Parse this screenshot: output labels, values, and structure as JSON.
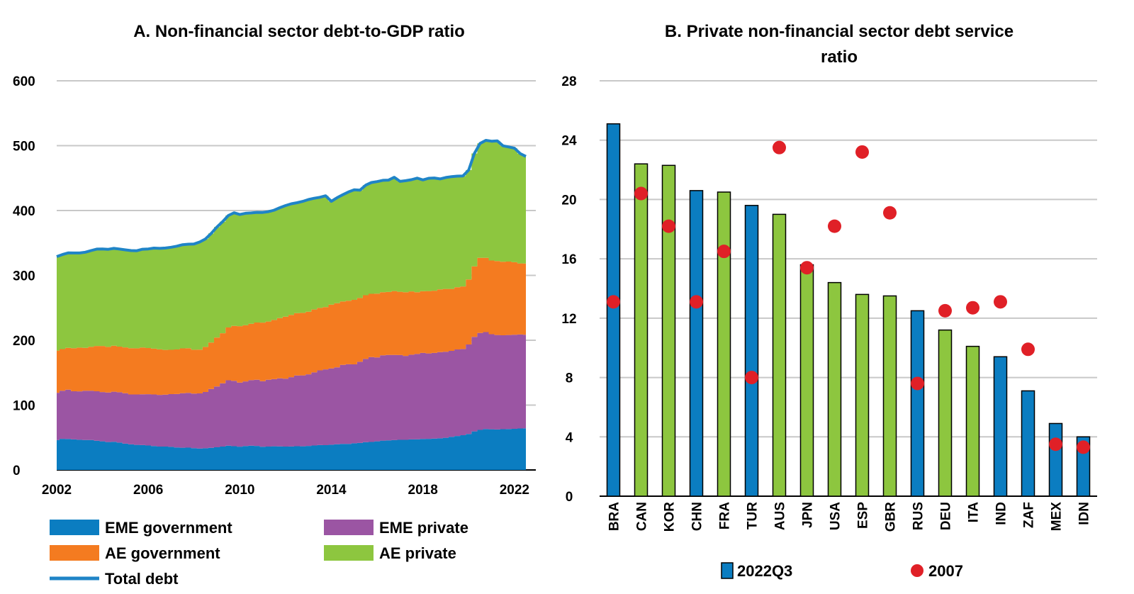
{
  "colors": {
    "eme_government": "#0b7dc1",
    "eme_private": "#9b55a3",
    "ae_government": "#f47b20",
    "ae_private": "#8dc63f",
    "total_debt": "#1f84c7",
    "bar_emerging": "#0b7dc1",
    "bar_advanced": "#8dc63f",
    "dot_2007": "#e02027",
    "grid": "#c8c8c8"
  },
  "chart_data": [
    {
      "type": "area",
      "title": "A. Non-financial sector debt-to-GDP ratio",
      "xlabel": "",
      "ylabel": "",
      "ylim": [
        0,
        600
      ],
      "yticks": [
        0,
        100,
        200,
        300,
        400,
        500,
        600
      ],
      "xticks": [
        "2002",
        "2006",
        "2010",
        "2014",
        "2018",
        "2022"
      ],
      "x": [
        2002.0,
        2002.25,
        2002.5,
        2002.75,
        2003.0,
        2003.25,
        2003.5,
        2003.75,
        2004.0,
        2004.25,
        2004.5,
        2004.75,
        2005.0,
        2005.25,
        2005.5,
        2005.75,
        2006.0,
        2006.25,
        2006.5,
        2006.75,
        2007.0,
        2007.25,
        2007.5,
        2007.75,
        2008.0,
        2008.25,
        2008.5,
        2008.75,
        2009.0,
        2009.25,
        2009.5,
        2009.75,
        2010.0,
        2010.25,
        2010.5,
        2010.75,
        2011.0,
        2011.25,
        2011.5,
        2011.75,
        2012.0,
        2012.25,
        2012.5,
        2012.75,
        2013.0,
        2013.25,
        2013.5,
        2013.75,
        2014.0,
        2014.25,
        2014.5,
        2014.75,
        2015.0,
        2015.25,
        2015.5,
        2015.75,
        2016.0,
        2016.25,
        2016.5,
        2016.75,
        2017.0,
        2017.25,
        2017.5,
        2017.75,
        2018.0,
        2018.25,
        2018.5,
        2018.75,
        2019.0,
        2019.25,
        2019.5,
        2019.75,
        2020.0,
        2020.25,
        2020.5,
        2020.75,
        2021.0,
        2021.25,
        2021.5,
        2021.75,
        2022.0,
        2022.25,
        2022.5
      ],
      "series": [
        {
          "name": "EME government",
          "values": [
            46.0,
            48.0,
            47.9,
            47.1,
            46.6,
            46.2,
            46.2,
            45.0,
            44.2,
            43.1,
            43.5,
            42.2,
            40.5,
            39.4,
            38.7,
            38.4,
            37.7,
            36.8,
            36.1,
            36.1,
            35.6,
            34.8,
            34.3,
            34.4,
            33.5,
            33.0,
            33.4,
            34.1,
            35.0,
            36.1,
            37.4,
            36.6,
            36.0,
            36.8,
            37.5,
            37.1,
            35.9,
            36.1,
            36.5,
            36.3,
            36.1,
            36.2,
            36.6,
            36.5,
            37.0,
            37.7,
            38.4,
            38.2,
            38.9,
            39.6,
            40.2,
            40.1,
            41.1,
            41.6,
            42.8,
            43.2,
            44.1,
            45.2,
            45.7,
            46.0,
            46.4,
            46.4,
            47.1,
            47.3,
            47.9,
            48.0,
            48.3,
            48.7,
            49.6,
            51.0,
            52.4,
            53.6,
            55.4,
            59.5,
            61.8,
            63.2,
            62.7,
            62.4,
            62.8,
            63.1,
            63.4,
            63.9,
            64.1
          ]
        },
        {
          "name": "EME private",
          "values": [
            73.0,
            74.1,
            75.9,
            74.2,
            74.6,
            76.0,
            76.0,
            76.3,
            75.9,
            76.4,
            77.2,
            77.6,
            77.9,
            77.0,
            77.7,
            78.3,
            79.1,
            79.6,
            79.6,
            80.0,
            81.3,
            82.3,
            84.1,
            84.4,
            84.3,
            85.0,
            86.8,
            90.8,
            93.7,
            97.5,
            100.8,
            100.9,
            98.8,
            99.7,
            101.1,
            102.0,
            100.9,
            103.0,
            103.5,
            104.9,
            104.6,
            106.9,
            109.1,
            109.3,
            110.4,
            112.7,
            115.2,
            116.9,
            117.6,
            118.5,
            121.8,
            122.8,
            121.7,
            125.2,
            128.4,
            130.8,
            129.5,
            131.6,
            131.7,
            131.4,
            130.8,
            129.5,
            130.6,
            131.5,
            132.5,
            131.7,
            132.1,
            132.9,
            132.6,
            132.6,
            133.4,
            132.8,
            138.0,
            145.6,
            149.4,
            149.4,
            146.6,
            145.7,
            144.9,
            145.0,
            145.1,
            145.0,
            144.4
          ]
        },
        {
          "name": "AE government",
          "values": [
            65.0,
            64.2,
            64.5,
            66.3,
            67.4,
            66.1,
            67.7,
            69.9,
            71.0,
            70.2,
            70.8,
            70.4,
            70.6,
            71.3,
            71.1,
            72.2,
            71.2,
            70.6,
            70.2,
            69.0,
            68.4,
            68.7,
            69.0,
            69.0,
            67.6,
            67.5,
            69.5,
            71.5,
            75.3,
            77.2,
            81.5,
            84.7,
            86.9,
            86.6,
            86.9,
            88.2,
            90.4,
            89.7,
            91.3,
            92.9,
            95.7,
            95.9,
            96.2,
            96.4,
            96.6,
            97.0,
            96.2,
            96.1,
            98.4,
            98.9,
            97.9,
            98.0,
            99.5,
            98.3,
            98.2,
            97.6,
            98.2,
            97.3,
            97.0,
            98.5,
            97.5,
            98.1,
            97.6,
            95.2,
            95.2,
            96.1,
            96.0,
            96.9,
            96.9,
            95.5,
            95.8,
            96.5,
            100.3,
            108.9,
            115.8,
            114.4,
            113.7,
            114.1,
            113.3,
            113.2,
            111.8,
            109.6,
            109.8
          ]
        },
        {
          "name": "AE private",
          "values": [
            145.0,
            145.8,
            146.3,
            146.9,
            145.9,
            147.4,
            148.4,
            149.3,
            149.6,
            150.5,
            150.1,
            150.3,
            150.3,
            150.5,
            150.5,
            151.4,
            152.8,
            155.1,
            155.7,
            157.1,
            158.1,
            159.2,
            159.9,
            160.3,
            163.0,
            166.0,
            166.5,
            168.3,
            170.5,
            172.0,
            172.7,
            174.3,
            172.2,
            172.6,
            170.8,
            169.9,
            169.9,
            169.4,
            169.2,
            170.3,
            171.3,
            171.4,
            170.1,
            171.9,
            172.9,
            171.5,
            170.6,
            171.5,
            159.3,
            162.8,
            164.5,
            167.7,
            169.6,
            166.3,
            169.7,
            171.6,
            172.8,
            172.5,
            172.5,
            175.4,
            170.2,
            172.0,
            172.2,
            175.9,
            171.6,
            173.9,
            173.8,
            170.2,
            171.8,
            173.1,
            171.4,
            170.4,
            168.7,
            174.0,
            176.5,
            181.2,
            183.9,
            185.2,
            178.8,
            176.7,
            175.8,
            169.4,
            165.1
          ]
        },
        {
          "name": "Total debt",
          "values": [
            329.0,
            332.1,
            334.6,
            334.5,
            334.5,
            335.7,
            338.3,
            340.5,
            340.7,
            340.2,
            341.6,
            340.5,
            339.3,
            338.2,
            338.0,
            340.3,
            340.8,
            342.1,
            341.6,
            342.2,
            343.4,
            345.0,
            347.3,
            348.1,
            348.4,
            351.5,
            356.2,
            364.7,
            374.5,
            382.8,
            392.4,
            396.5,
            393.9,
            395.7,
            396.3,
            397.2,
            397.1,
            398.2,
            400.5,
            404.4,
            407.7,
            410.4,
            412.0,
            414.1,
            416.9,
            418.9,
            420.4,
            422.7,
            414.2,
            419.8,
            424.4,
            428.6,
            431.9,
            431.4,
            439.1,
            443.2,
            444.6,
            446.6,
            446.9,
            451.3,
            444.9,
            446.0,
            447.5,
            449.9,
            447.2,
            449.7,
            450.2,
            448.7,
            450.9,
            452.2,
            453.0,
            453.3,
            462.4,
            488.0,
            503.5,
            508.2,
            506.9,
            507.4,
            499.8,
            498.0,
            496.1,
            487.9,
            483.4
          ]
        }
      ],
      "legend": [
        "EME government",
        "EME private",
        "AE government",
        "AE private",
        "Total debt"
      ]
    },
    {
      "type": "bar",
      "title": "B. Private non-financial sector debt service ratio",
      "xlabel": "",
      "ylabel": "",
      "ylim": [
        0,
        28
      ],
      "yticks": [
        0,
        4,
        8,
        12,
        16,
        20,
        24,
        28
      ],
      "categories": [
        "BRA",
        "CAN",
        "KOR",
        "CHN",
        "FRA",
        "TUR",
        "AUS",
        "JPN",
        "USA",
        "ESP",
        "GBR",
        "RUS",
        "DEU",
        "ITA",
        "IND",
        "ZAF",
        "MEX",
        "IDN"
      ],
      "bar_group": [
        "emerging",
        "advanced",
        "advanced",
        "emerging",
        "advanced",
        "emerging",
        "advanced",
        "advanced",
        "advanced",
        "advanced",
        "advanced",
        "emerging",
        "advanced",
        "advanced",
        "emerging",
        "emerging",
        "emerging",
        "emerging"
      ],
      "series": [
        {
          "name": "2022Q3",
          "values": [
            25.1,
            22.4,
            22.3,
            20.6,
            20.5,
            19.6,
            19.0,
            15.6,
            14.4,
            13.6,
            13.5,
            12.5,
            11.2,
            10.1,
            9.4,
            7.1,
            4.9,
            4.0
          ]
        },
        {
          "name": "2007",
          "values": [
            13.1,
            20.4,
            18.2,
            13.1,
            16.5,
            8.0,
            23.5,
            15.4,
            18.2,
            23.2,
            19.1,
            7.6,
            12.5,
            12.7,
            13.1,
            9.9,
            3.5,
            3.3
          ]
        }
      ],
      "legend": [
        "2022Q3",
        "2007"
      ]
    }
  ]
}
